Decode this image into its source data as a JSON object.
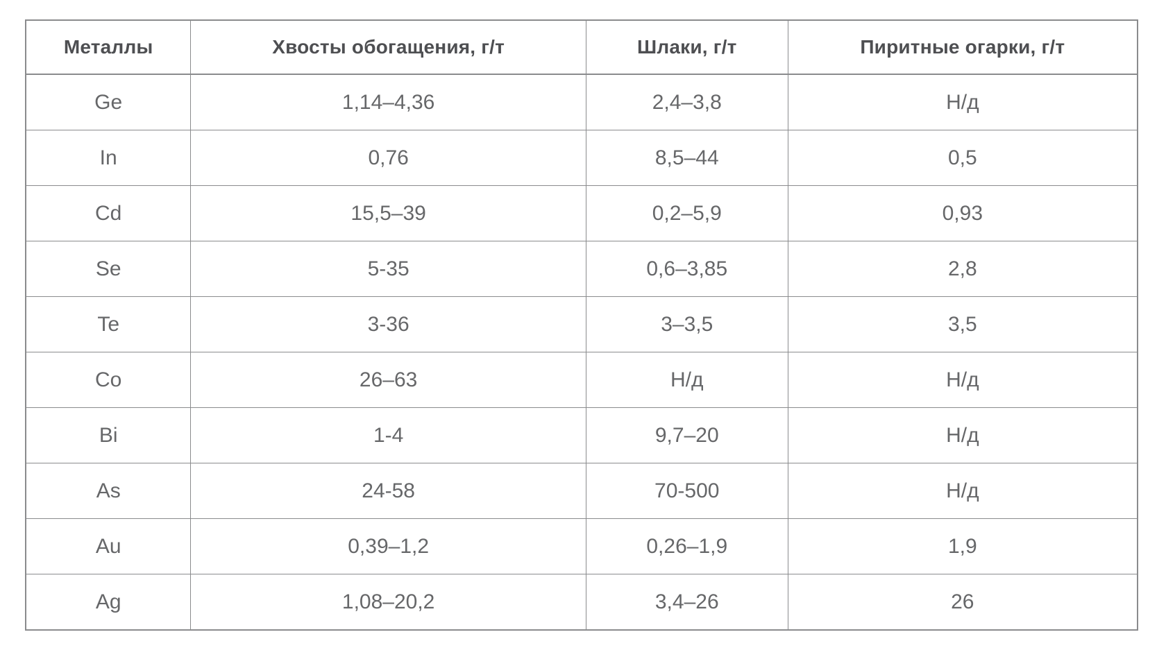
{
  "page": {
    "background_color": "#ffffff",
    "text_color": "#666769",
    "header_text_color": "#4e4f52",
    "border_color": "#8a8b8d"
  },
  "table": {
    "columns": [
      "Металлы",
      "Хвосты обогащения, г/т",
      "Шлаки, г/т",
      "Пиритные огарки, г/т"
    ],
    "rows": [
      [
        "Ge",
        "1,14–4,36",
        "2,4–3,8",
        "Н/д"
      ],
      [
        "In",
        "0,76",
        "8,5–44",
        "0,5"
      ],
      [
        "Cd",
        "15,5–39",
        "0,2–5,9",
        "0,93"
      ],
      [
        "Se",
        "5-35",
        "0,6–3,85",
        "2,8"
      ],
      [
        "Te",
        "3-36",
        "3–3,5",
        "3,5"
      ],
      [
        "Co",
        "26–63",
        "Н/д",
        "Н/д"
      ],
      [
        "Bi",
        "1-4",
        "9,7–20",
        "Н/д"
      ],
      [
        "As",
        "24-58",
        "70-500",
        "Н/д"
      ],
      [
        "Au",
        "0,39–1,2",
        "0,26–1,9",
        "1,9"
      ],
      [
        "Ag",
        "1,08–20,2",
        "3,4–26",
        "26"
      ]
    ],
    "not_available_label": "Н/д"
  },
  "chart_data": {
    "type": "table",
    "title": "",
    "columns": [
      "Металлы",
      "Хвосты обогащения, г/т",
      "Шлаки, г/т",
      "Пиритные огарки, г/т"
    ],
    "rows": [
      [
        "Ge",
        "1,14–4,36",
        "2,4–3,8",
        "Н/д"
      ],
      [
        "In",
        "0,76",
        "8,5–44",
        "0,5"
      ],
      [
        "Cd",
        "15,5–39",
        "0,2–5,9",
        "0,93"
      ],
      [
        "Se",
        "5-35",
        "0,6–3,85",
        "2,8"
      ],
      [
        "Te",
        "3-36",
        "3–3,5",
        "3,5"
      ],
      [
        "Co",
        "26–63",
        "Н/д",
        "Н/д"
      ],
      [
        "Bi",
        "1-4",
        "9,7–20",
        "Н/д"
      ],
      [
        "As",
        "24-58",
        "70-500",
        "Н/д"
      ],
      [
        "Au",
        "0,39–1,2",
        "0,26–1,9",
        "1,9"
      ],
      [
        "Ag",
        "1,08–20,2",
        "3,4–26",
        "26"
      ]
    ]
  }
}
